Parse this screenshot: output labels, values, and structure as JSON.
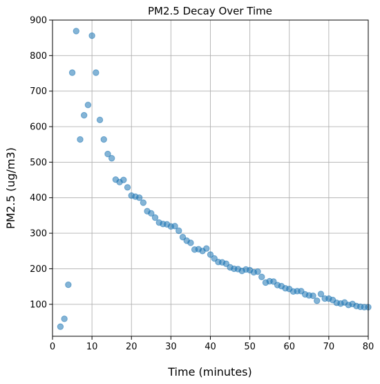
{
  "chart_data": {
    "type": "scatter",
    "title": "PM2.5 Decay Over Time",
    "xlabel": "Time (minutes)",
    "ylabel": "PM2.5 (ug/m3)",
    "xlim": [
      0,
      80
    ],
    "ylim": [
      10,
      900
    ],
    "xticks": [
      0,
      10,
      20,
      30,
      40,
      50,
      60,
      70,
      80
    ],
    "yticks": [
      100,
      200,
      300,
      400,
      500,
      600,
      700,
      800,
      900
    ],
    "grid": true,
    "marker_color": "#1f77b4",
    "marker_alpha": 0.55,
    "points": [
      [
        2,
        37
      ],
      [
        3,
        59
      ],
      [
        4,
        155
      ],
      [
        5,
        752
      ],
      [
        6,
        869
      ],
      [
        7,
        564
      ],
      [
        8,
        632
      ],
      [
        9,
        661
      ],
      [
        10,
        856
      ],
      [
        11,
        752
      ],
      [
        12,
        619
      ],
      [
        13,
        564
      ],
      [
        14,
        523
      ],
      [
        15,
        511
      ],
      [
        16,
        451
      ],
      [
        17,
        444
      ],
      [
        18,
        450
      ],
      [
        19,
        429
      ],
      [
        20,
        406
      ],
      [
        21,
        403
      ],
      [
        22,
        400
      ],
      [
        23,
        386
      ],
      [
        24,
        362
      ],
      [
        25,
        356
      ],
      [
        26,
        344
      ],
      [
        27,
        330
      ],
      [
        28,
        326
      ],
      [
        29,
        325
      ],
      [
        30,
        319
      ],
      [
        31,
        320
      ],
      [
        32,
        307
      ],
      [
        33,
        289
      ],
      [
        34,
        279
      ],
      [
        35,
        273
      ],
      [
        36,
        254
      ],
      [
        37,
        255
      ],
      [
        38,
        250
      ],
      [
        39,
        257
      ],
      [
        40,
        240
      ],
      [
        41,
        229
      ],
      [
        42,
        219
      ],
      [
        43,
        218
      ],
      [
        44,
        214
      ],
      [
        45,
        204
      ],
      [
        46,
        200
      ],
      [
        47,
        199
      ],
      [
        48,
        194
      ],
      [
        49,
        198
      ],
      [
        50,
        196
      ],
      [
        51,
        190
      ],
      [
        52,
        192
      ],
      [
        53,
        177
      ],
      [
        54,
        161
      ],
      [
        55,
        165
      ],
      [
        56,
        164
      ],
      [
        57,
        154
      ],
      [
        58,
        151
      ],
      [
        59,
        145
      ],
      [
        60,
        143
      ],
      [
        61,
        136
      ],
      [
        62,
        137
      ],
      [
        63,
        137
      ],
      [
        64,
        128
      ],
      [
        65,
        125
      ],
      [
        66,
        124
      ],
      [
        67,
        110
      ],
      [
        68,
        129
      ],
      [
        69,
        116
      ],
      [
        70,
        116
      ],
      [
        71,
        112
      ],
      [
        72,
        104
      ],
      [
        73,
        102
      ],
      [
        74,
        105
      ],
      [
        75,
        98
      ],
      [
        76,
        101
      ],
      [
        77,
        95
      ],
      [
        78,
        93
      ],
      [
        79,
        92
      ],
      [
        80,
        92
      ]
    ]
  }
}
